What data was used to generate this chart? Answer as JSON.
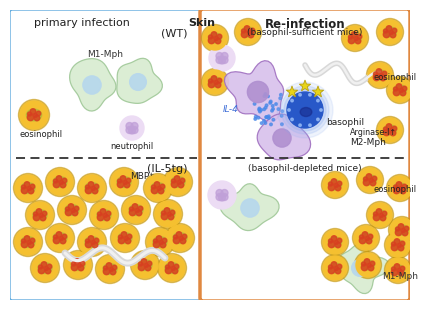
{
  "left_box_color": "#6ab0e0",
  "right_box_color": "#e08840",
  "label_primary": "primary infection",
  "label_skin": "Skin",
  "label_reinfect": "Re-infection",
  "label_WT": "(WT)",
  "label_IL5": "(IL-5tg)",
  "label_baso_suff": "(basophil-sufficient mice)",
  "label_baso_dep": "(basophil-depleted mice)",
  "label_M1Mph_tl": "M1-Mph",
  "label_eosinophil": "eosinophil",
  "label_neutrophil": "neutrophil",
  "label_MBP": "MBP⁺",
  "label_IL4": "IL-4",
  "label_basophil": "basophil",
  "label_M2Mph": "M2-Mph",
  "label_Arginase": "Arginase-I↑",
  "label_M1Mph_br": "M1-Mph",
  "eosinophil_yellow": "#f5c030",
  "eosinophil_ring": "#c8980a",
  "eosinophil_spot_red": "#d84020",
  "eosinophil_spot_orange": "#e87030",
  "eosinophil_green": "#80b840",
  "neutrophil_body": "#ecdcf4",
  "neutrophil_nuc": "#c0a0d8",
  "M1_body": "#d8ecd0",
  "M1_nuc": "#b8d8ec",
  "M1_edge": "#a0c898",
  "M2_body": "#d8c0ec",
  "M2_nuc": "#b090d0",
  "M2_edge": "#a070c0",
  "baso_body": "#2858c8",
  "baso_glow": "#90b0f0",
  "baso_nuc": "#162888",
  "worm_color": "#d8d8d8",
  "worm_edge": "#b8b8b8",
  "IL4_dot": "#4888e8",
  "star_fill": "#e8d418",
  "star_edge": "#b8a010",
  "bg": "#ffffff"
}
